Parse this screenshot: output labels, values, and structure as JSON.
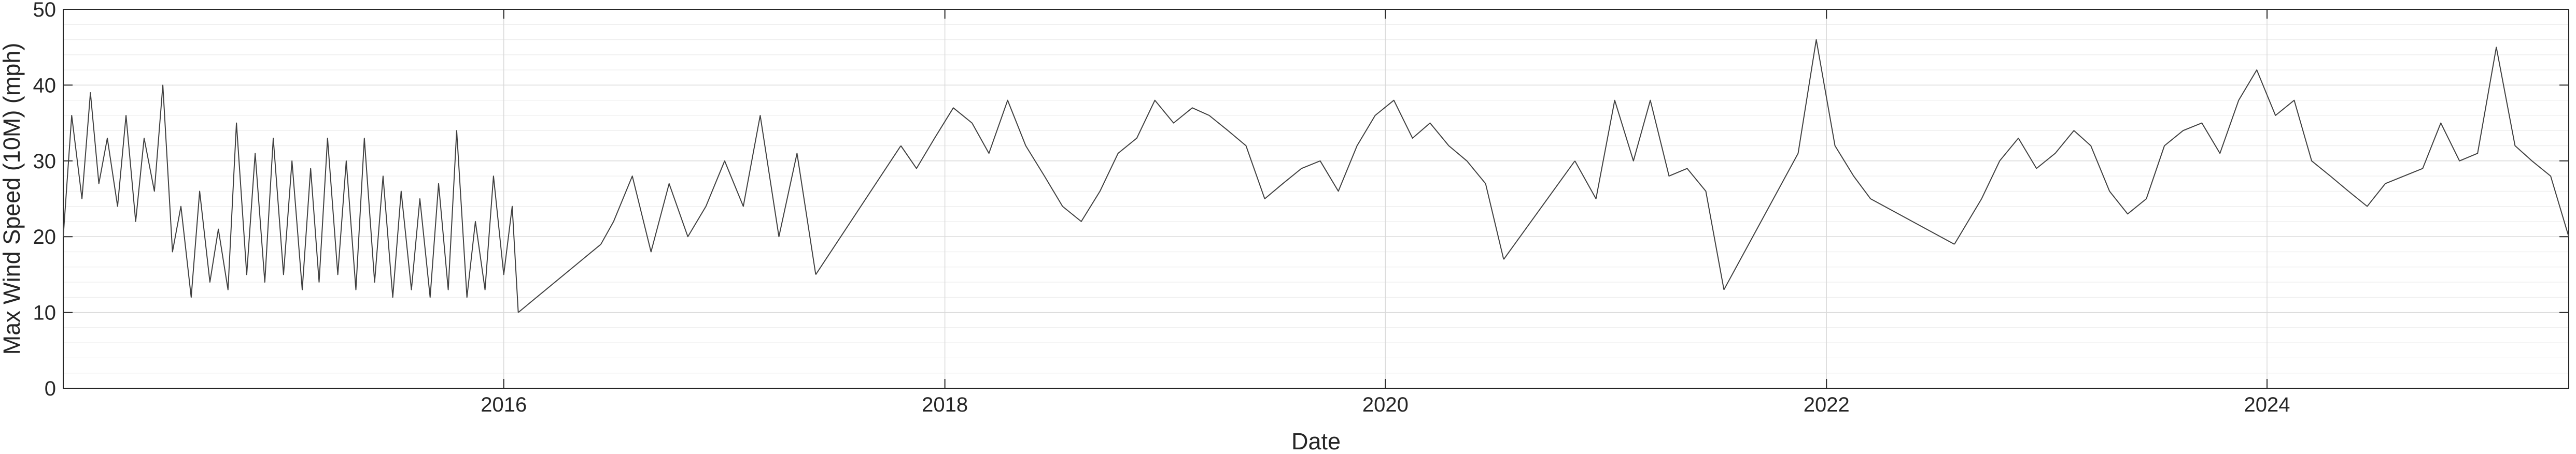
{
  "chart_data": {
    "type": "line",
    "title": "",
    "xlabel": "Date",
    "ylabel": "Max Wind Speed (10M) (mph)",
    "ylim": [
      0,
      50
    ],
    "xlim": [
      "2014-01-01",
      "2025-05-15"
    ],
    "x_ticks": [
      "2016",
      "2018",
      "2020",
      "2022",
      "2024"
    ],
    "y_ticks": [
      "0",
      "10",
      "20",
      "30",
      "40",
      "50"
    ],
    "grid": true,
    "minor_grid": true,
    "legend": "none",
    "line_color": "#404040",
    "series": [
      {
        "segments": [
          {
            "x": [
              "2014-01-01",
              "2014-01-15",
              "2014-02-01",
              "2014-02-15",
              "2014-03-01",
              "2014-03-15",
              "2014-04-01",
              "2014-04-15",
              "2014-05-01",
              "2014-05-15",
              "2014-06-01",
              "2014-06-15",
              "2014-07-01",
              "2014-07-15",
              "2014-08-01",
              "2014-08-15",
              "2014-09-01",
              "2014-09-15",
              "2014-10-01",
              "2014-10-15",
              "2014-11-01",
              "2014-11-15",
              "2014-12-01",
              "2014-12-15",
              "2015-01-01",
              "2015-01-15",
              "2015-02-01",
              "2015-02-15",
              "2015-03-01",
              "2015-03-15",
              "2015-04-01",
              "2015-04-15",
              "2015-05-01",
              "2015-05-15",
              "2015-06-01",
              "2015-06-15",
              "2015-07-01",
              "2015-07-15",
              "2015-08-01",
              "2015-08-15",
              "2015-09-01",
              "2015-09-15",
              "2015-10-01",
              "2015-10-15",
              "2015-11-01",
              "2015-11-15",
              "2015-12-01",
              "2015-12-15",
              "2016-01-01",
              "2016-01-15",
              "2016-01-25"
            ],
            "y": [
              20,
              36,
              25,
              39,
              27,
              33,
              24,
              36,
              22,
              33,
              26,
              40,
              18,
              24,
              12,
              26,
              14,
              21,
              13,
              35,
              15,
              31,
              14,
              33,
              15,
              30,
              13,
              29,
              14,
              33,
              15,
              30,
              13,
              33,
              14,
              28,
              12,
              26,
              13,
              25,
              12,
              27,
              13,
              34,
              12,
              22,
              13,
              28,
              15,
              24,
              10
            ]
          },
          {
            "x": [
              "2016-06-10",
              "2016-07-01",
              "2016-08-01",
              "2016-09-01",
              "2016-10-01",
              "2016-11-01",
              "2016-12-01",
              "2017-01-01",
              "2017-02-01",
              "2017-03-01",
              "2017-04-01",
              "2017-05-01",
              "2017-06-01"
            ],
            "y": [
              19,
              22,
              28,
              18,
              27,
              20,
              24,
              30,
              24,
              36,
              20,
              31,
              15
            ]
          },
          {
            "x": [
              "2017-10-20",
              "2017-11-15",
              "2017-12-15",
              "2018-01-15",
              "2018-02-15",
              "2018-03-15",
              "2018-04-15",
              "2018-05-15",
              "2018-06-15",
              "2018-07-15",
              "2018-08-15",
              "2018-09-15",
              "2018-10-15",
              "2018-11-15",
              "2018-12-15",
              "2019-01-15",
              "2019-02-15",
              "2019-03-15",
              "2019-04-15",
              "2019-05-15",
              "2019-06-15",
              "2019-07-15",
              "2019-08-15",
              "2019-09-15",
              "2019-10-15",
              "2019-11-15",
              "2019-12-15",
              "2020-01-15",
              "2020-02-15",
              "2020-03-15",
              "2020-04-15",
              "2020-05-15",
              "2020-06-15",
              "2020-07-15"
            ],
            "y": [
              32,
              29,
              33,
              37,
              35,
              31,
              38,
              32,
              28,
              24,
              22,
              26,
              31,
              33,
              38,
              35,
              37,
              36,
              34,
              32,
              25,
              27,
              29,
              30,
              26,
              32,
              36,
              38,
              33,
              35,
              32,
              30,
              27,
              17
            ]
          },
          {
            "x": [
              "2020-11-10",
              "2020-12-15",
              "2021-01-15",
              "2021-02-15",
              "2021-03-15",
              "2021-04-15",
              "2021-05-15",
              "2021-06-15",
              "2021-07-15"
            ],
            "y": [
              30,
              25,
              38,
              30,
              38,
              28,
              29,
              26,
              13
            ]
          },
          {
            "x": [
              "2021-11-15",
              "2021-12-15",
              "2022-01-15",
              "2022-02-15",
              "2022-03-15"
            ],
            "y": [
              31,
              46,
              32,
              28,
              25
            ]
          },
          {
            "x": [
              "2022-08-01",
              "2022-09-15",
              "2022-10-15",
              "2022-11-15",
              "2022-12-15",
              "2023-01-15",
              "2023-02-15",
              "2023-03-15",
              "2023-04-15",
              "2023-05-15",
              "2023-06-15",
              "2023-07-15",
              "2023-08-15",
              "2023-09-15",
              "2023-10-15",
              "2023-11-15",
              "2023-12-15",
              "2024-01-15",
              "2024-02-15",
              "2024-03-15",
              "2024-04-15",
              "2024-05-15",
              "2024-06-15",
              "2024-07-15",
              "2024-08-15",
              "2024-09-15",
              "2024-10-15",
              "2024-11-15",
              "2024-12-15",
              "2025-01-15",
              "2025-02-15",
              "2025-03-15",
              "2025-04-15",
              "2025-05-15"
            ],
            "y": [
              19,
              25,
              30,
              33,
              29,
              31,
              34,
              32,
              26,
              23,
              25,
              32,
              34,
              35,
              31,
              38,
              42,
              36,
              38,
              30,
              28,
              26,
              24,
              27,
              28,
              29,
              35,
              30,
              31,
              45,
              32,
              30,
              28,
              20
            ]
          }
        ]
      }
    ]
  }
}
